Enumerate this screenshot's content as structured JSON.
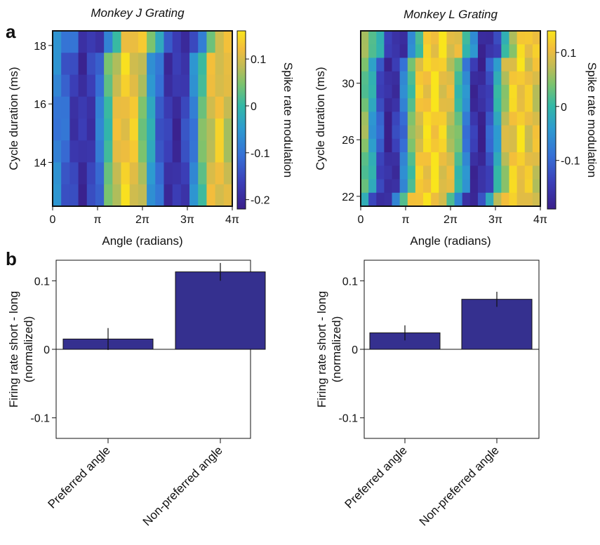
{
  "panel_labels": [
    "a",
    "b"
  ],
  "chart_data": [
    {
      "type": "heatmap",
      "title": "Monkey J Grating",
      "xlabel": "Angle (radians)",
      "ylabel": "Cycle duration (ms)",
      "colorbar_label": "Spike rate modulation",
      "x_ticks": [
        "0",
        "π",
        "2π",
        "3π",
        "4π"
      ],
      "x_tick_values": [
        0,
        1,
        2,
        3,
        4
      ],
      "xlim": [
        0,
        4
      ],
      "y_ticks": [
        "14",
        "16",
        "18"
      ],
      "y_tick_values": [
        14,
        16,
        18
      ],
      "ylim": [
        12.5,
        18.5
      ],
      "colorbar_ticks": [
        "0.1",
        "0",
        "-0.1",
        "-0.2"
      ],
      "colorbar_tick_values": [
        0.1,
        0,
        -0.1,
        -0.2
      ],
      "colorbar_range": [
        -0.22,
        0.16
      ],
      "colormap": "viridis",
      "grid": false,
      "profile": [
        -0.08,
        -0.12,
        -0.17,
        -0.19,
        -0.17,
        -0.1,
        0.02,
        0.1,
        0.13,
        0.12,
        0.06,
        -0.04,
        -0.12,
        -0.18,
        -0.19,
        -0.16,
        -0.08,
        0.03,
        0.1,
        0.12,
        0.09
      ],
      "rows": 8,
      "phase_shift": 0.0
    },
    {
      "type": "heatmap",
      "title": "Monkey L Grating",
      "xlabel": "Angle (radians)",
      "ylabel": "Cycle duration (ms)",
      "colorbar_label": "Spike rate modulation",
      "x_ticks": [
        "0",
        "π",
        "2π",
        "3π",
        "4π"
      ],
      "x_tick_values": [
        0,
        1,
        2,
        3,
        4
      ],
      "xlim": [
        0,
        4
      ],
      "y_ticks": [
        "22",
        "26",
        "30"
      ],
      "y_tick_values": [
        22,
        26,
        30
      ],
      "ylim": [
        21.3,
        33.7
      ],
      "colorbar_ticks": [
        "0.1",
        "0",
        "-0.1"
      ],
      "colorbar_tick_values": [
        0.1,
        0,
        -0.1
      ],
      "colorbar_range": [
        -0.19,
        0.14
      ],
      "colormap": "viridis",
      "grid": false,
      "profile": [
        0.04,
        -0.03,
        -0.12,
        -0.18,
        -0.15,
        -0.08,
        0.03,
        0.1,
        0.12,
        0.13,
        0.11,
        0.08,
        0.02,
        -0.07,
        -0.16,
        -0.18,
        -0.12,
        -0.02,
        0.07,
        0.11,
        0.12,
        0.1,
        0.09
      ],
      "rows": 13,
      "phase_shift": 0.0
    },
    {
      "type": "bar",
      "categories": [
        "Preferred angle",
        "Non-preferred angle"
      ],
      "values": [
        0.015,
        0.113
      ],
      "errors": [
        0.016,
        0.013
      ],
      "ylabel": "Firing rate short - long (normalized)",
      "ylabel_lines": [
        "Firing rate short - long",
        "(normalized)"
      ],
      "y_ticks": [
        "0.1",
        "0",
        "-0.1"
      ],
      "y_tick_values": [
        0.1,
        0,
        -0.1
      ],
      "ylim": [
        -0.13,
        0.13
      ],
      "bar_color": "#35308f",
      "grid": false
    },
    {
      "type": "bar",
      "categories": [
        "Preferred angle",
        "Non-preferred angle"
      ],
      "values": [
        0.024,
        0.073
      ],
      "errors": [
        0.011,
        0.011
      ],
      "ylabel": "Firing rate short - long (normalized)",
      "ylabel_lines": [
        "Firing rate short - long",
        "(normalized)"
      ],
      "y_ticks": [
        "0.1",
        "0",
        "-0.1"
      ],
      "y_tick_values": [
        0.1,
        0,
        -0.1
      ],
      "ylim": [
        -0.13,
        0.13
      ],
      "bar_color": "#35308f",
      "grid": false
    }
  ]
}
